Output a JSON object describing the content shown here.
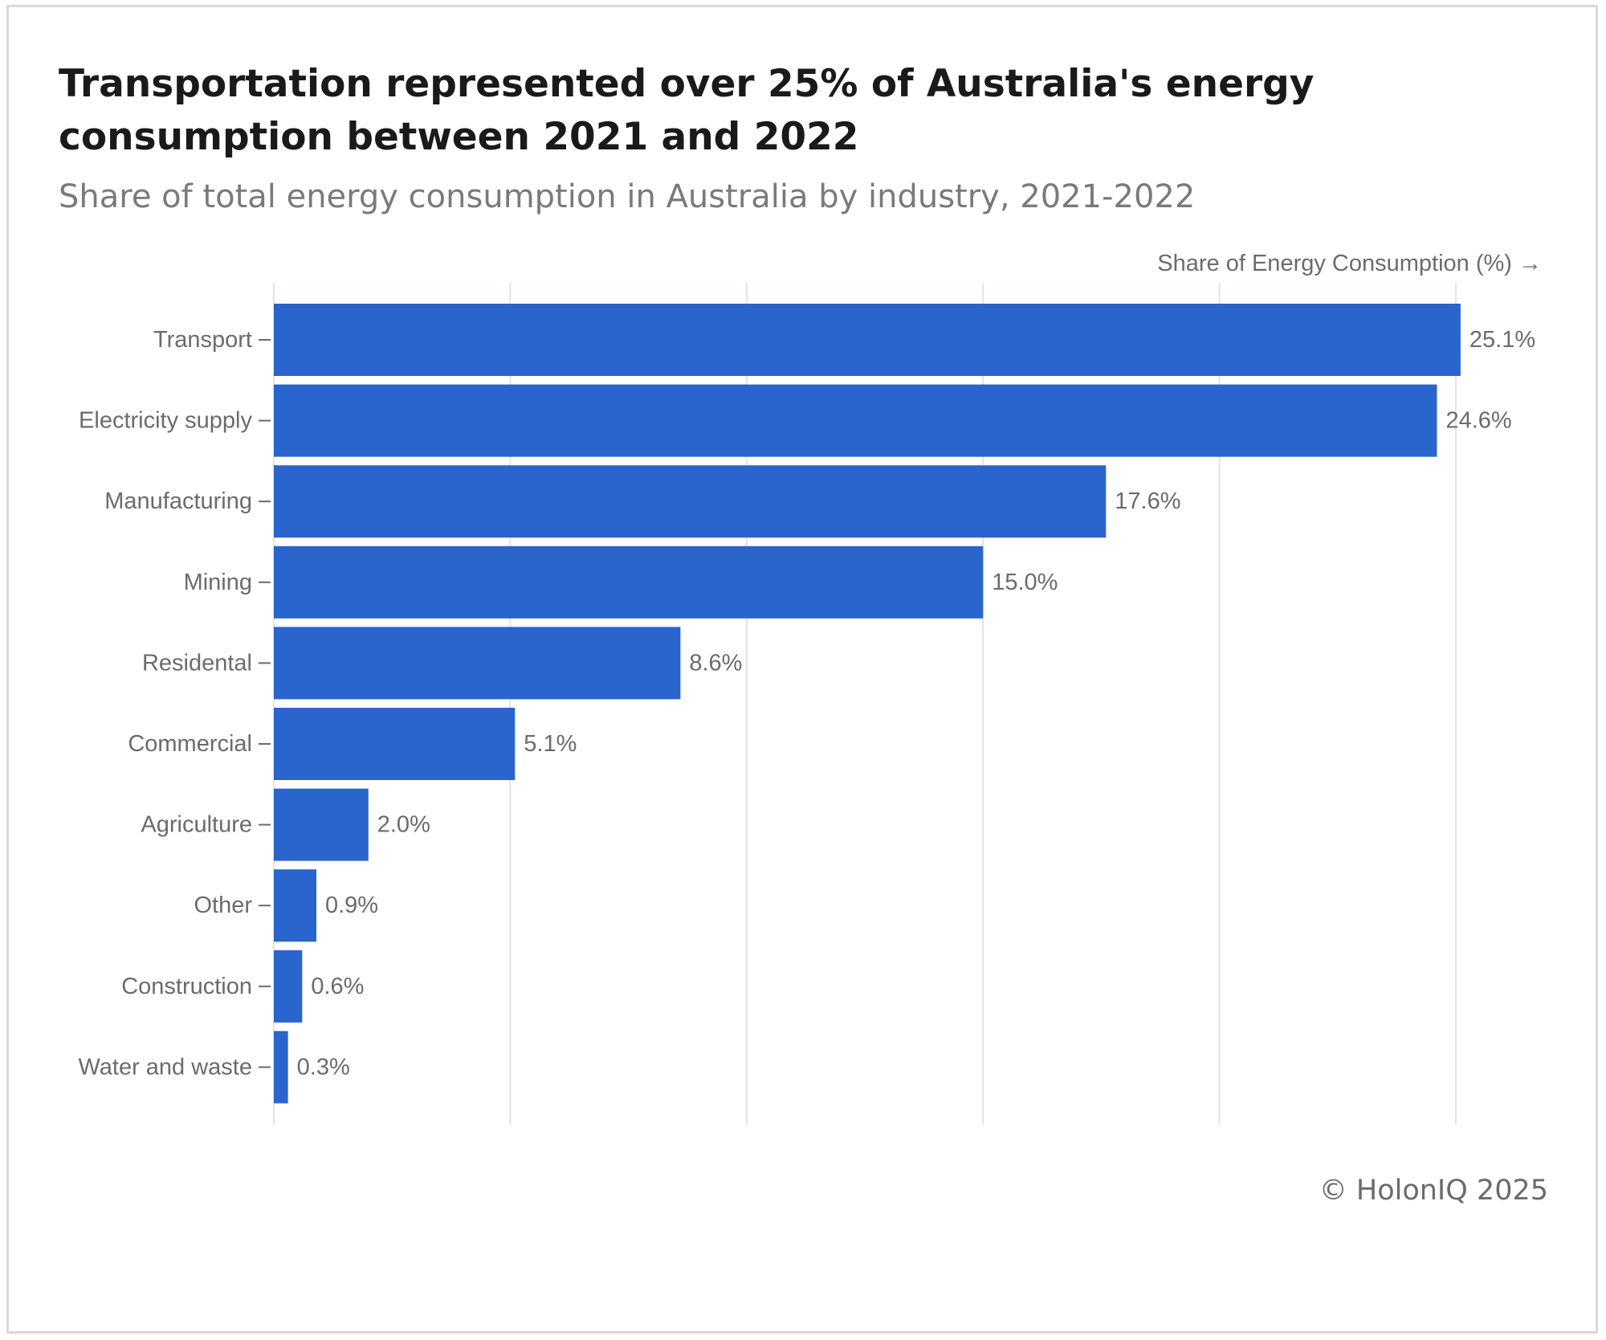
{
  "title": "Transportation represented over 25% of Australia's energy consumption between 2021 and 2022",
  "subtitle": "Share of total energy consumption in Australia by industry, 2021-2022",
  "credit": "© HolonIQ 2025",
  "chart_data": {
    "type": "bar",
    "orientation": "horizontal",
    "xlabel": "Share of Energy Consumption (%) →",
    "ylabel": "",
    "xlim": [
      0,
      25
    ],
    "grid": true,
    "bar_color": "#2a64cd",
    "categories": [
      "Transport",
      "Electricity supply",
      "Manufacturing",
      "Mining",
      "Residental",
      "Commercial",
      "Agriculture",
      "Other",
      "Construction",
      "Water and waste"
    ],
    "values": [
      25.1,
      24.6,
      17.6,
      15.0,
      8.6,
      5.1,
      2.0,
      0.9,
      0.6,
      0.3
    ],
    "value_labels": [
      "25.1%",
      "24.6%",
      "17.6%",
      "15.0%",
      "8.6%",
      "5.1%",
      "2.0%",
      "0.9%",
      "0.6%",
      "0.3%"
    ]
  }
}
